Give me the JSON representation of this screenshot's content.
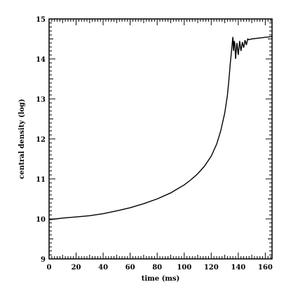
{
  "chart_data": {
    "type": "line",
    "title": "",
    "xlabel": "time (ms)",
    "ylabel": "central density (log)",
    "xlim": [
      0,
      165
    ],
    "ylim": [
      9,
      15
    ],
    "xticks": [
      0,
      20,
      40,
      60,
      80,
      100,
      120,
      140,
      160
    ],
    "yticks": [
      9,
      10,
      11,
      12,
      13,
      14,
      15
    ],
    "xtick_labels": [
      "0",
      "20",
      "40",
      "60",
      "80",
      "100",
      "120",
      "140",
      "160"
    ],
    "ytick_labels": [
      "9",
      "10",
      "11",
      "12",
      "13",
      "14",
      "15"
    ],
    "grid": false,
    "legend": false,
    "series": [
      {
        "x": [
          0,
          5,
          10,
          20,
          30,
          40,
          50,
          60,
          70,
          80,
          90,
          100,
          105,
          110,
          115,
          120,
          124,
          127,
          130,
          132,
          133,
          134,
          135,
          136,
          136.5,
          137,
          137.5,
          138,
          139,
          140,
          141,
          142,
          143,
          144,
          145,
          146,
          147,
          148,
          150,
          155,
          160,
          165
        ],
        "values": [
          9.98,
          10.0,
          10.02,
          10.05,
          10.08,
          10.13,
          10.2,
          10.28,
          10.38,
          10.5,
          10.65,
          10.85,
          10.98,
          11.13,
          11.32,
          11.57,
          11.87,
          12.2,
          12.65,
          13.1,
          13.45,
          13.85,
          14.2,
          14.55,
          14.2,
          14.45,
          14.38,
          14.0,
          14.4,
          14.1,
          14.45,
          14.2,
          14.42,
          14.28,
          14.47,
          14.35,
          14.5,
          14.48,
          14.5,
          14.52,
          14.54,
          14.56
        ]
      }
    ]
  }
}
